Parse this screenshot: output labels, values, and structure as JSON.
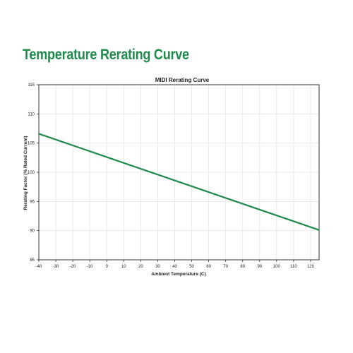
{
  "page": {
    "heading": "Temperature Rerating Curve",
    "accent_color": "#1f8a4c"
  },
  "chart_data": {
    "type": "line",
    "title": "MIDI Rerating Curve",
    "xlabel": "Ambient Temperature (C)",
    "ylabel": "Rerating Factor (% Rated Current)",
    "xlim": [
      -40,
      125
    ],
    "ylim": [
      85,
      115
    ],
    "xticks": [
      -40,
      -30,
      -20,
      -10,
      0,
      10,
      20,
      30,
      40,
      50,
      60,
      70,
      80,
      90,
      100,
      110,
      120
    ],
    "yticks": [
      85,
      90,
      95,
      100,
      105,
      110,
      115
    ],
    "grid": true,
    "series": [
      {
        "x": [
          -40,
          125
        ],
        "y": [
          106.6,
          90.1
        ],
        "color": "#1f8a4c"
      }
    ]
  }
}
